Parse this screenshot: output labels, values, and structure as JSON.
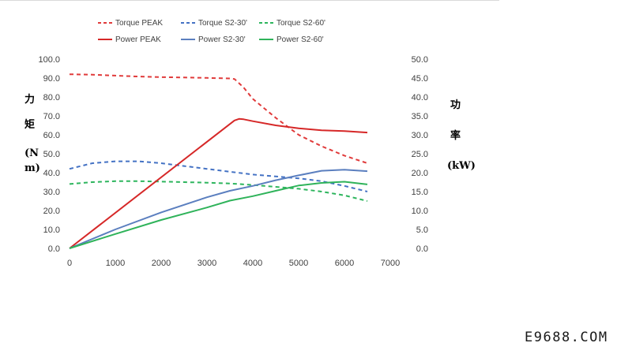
{
  "chart_data": {
    "type": "line",
    "x_ticks": [
      0,
      1000,
      2000,
      3000,
      4000,
      5000,
      6000,
      7000
    ],
    "xlim": [
      0,
      7000
    ],
    "y_left": {
      "label_chars": [
        "力",
        "矩",
        "(N",
        "m)"
      ],
      "ylim": [
        0,
        100
      ],
      "ticks": [
        "0.0",
        "10.0",
        "20.0",
        "30.0",
        "40.0",
        "50.0",
        "60.0",
        "70.0",
        "80.0",
        "90.0",
        "100.0"
      ]
    },
    "y_right": {
      "label_chars": [
        "功",
        "率",
        "(kW)"
      ],
      "ylim": [
        0,
        50
      ],
      "ticks": [
        "0.0",
        "5.0",
        "10.0",
        "15.0",
        "20.0",
        "25.0",
        "30.0",
        "35.0",
        "40.0",
        "45.0",
        "50.0"
      ]
    },
    "grid": false,
    "legend_position": "top",
    "series": [
      {
        "name": "Torque PEAK",
        "axis": "left",
        "style": "dashed",
        "color": "#e03a3a",
        "x": [
          0,
          500,
          1000,
          1500,
          2000,
          2500,
          3000,
          3500,
          3600,
          3800,
          4000,
          4500,
          5000,
          5500,
          6000,
          6500
        ],
        "y": [
          92,
          91.8,
          91.3,
          90.8,
          90.5,
          90.3,
          90.1,
          89.8,
          89.5,
          85,
          79,
          69,
          60,
          54,
          49,
          45
        ]
      },
      {
        "name": "Torque S2-30'",
        "axis": "left",
        "style": "dashed",
        "color": "#4472c4",
        "x": [
          0,
          500,
          1000,
          1500,
          2000,
          2500,
          3000,
          3500,
          4000,
          4500,
          5000,
          5500,
          6000,
          6500
        ],
        "y": [
          42,
          45,
          46,
          46,
          45,
          43.5,
          42,
          40.5,
          39,
          38,
          37,
          35.5,
          33,
          30
        ]
      },
      {
        "name": "Torque S2-60'",
        "axis": "left",
        "style": "dashed",
        "color": "#2db55d",
        "x": [
          0,
          500,
          1000,
          1500,
          2000,
          2500,
          3000,
          3500,
          4000,
          4500,
          5000,
          5500,
          6000,
          6500
        ],
        "y": [
          34,
          35,
          35.5,
          35.5,
          35.3,
          35,
          34.7,
          34.3,
          33.5,
          32.5,
          31.5,
          30,
          28,
          25
        ]
      },
      {
        "name": "Power PEAK",
        "axis": "right",
        "style": "solid",
        "color": "#d62828",
        "x": [
          0,
          3600,
          3700,
          3800,
          4000,
          4500,
          5000,
          5500,
          6000,
          6500
        ],
        "y": [
          0,
          33.8,
          34.2,
          34.1,
          33.6,
          32.5,
          31.7,
          31.2,
          31,
          30.6
        ]
      },
      {
        "name": "Power S2-30'",
        "axis": "right",
        "style": "solid",
        "color": "#5b7fbf",
        "x": [
          0,
          1000,
          2000,
          3000,
          3500,
          4000,
          4500,
          5000,
          5500,
          6000,
          6500
        ],
        "y": [
          0,
          5,
          9.5,
          13.5,
          15.2,
          16.5,
          18,
          19.3,
          20.5,
          20.8,
          20.4
        ]
      },
      {
        "name": "Power S2-60'",
        "axis": "right",
        "style": "solid",
        "color": "#2fb35a",
        "x": [
          0,
          1000,
          2000,
          3000,
          3500,
          4000,
          4500,
          5000,
          5500,
          6000,
          6500
        ],
        "y": [
          0,
          3.8,
          7.5,
          10.8,
          12.6,
          13.8,
          15.2,
          16.6,
          17.3,
          17.6,
          16.9
        ]
      }
    ]
  },
  "watermark": "E9688.COM"
}
